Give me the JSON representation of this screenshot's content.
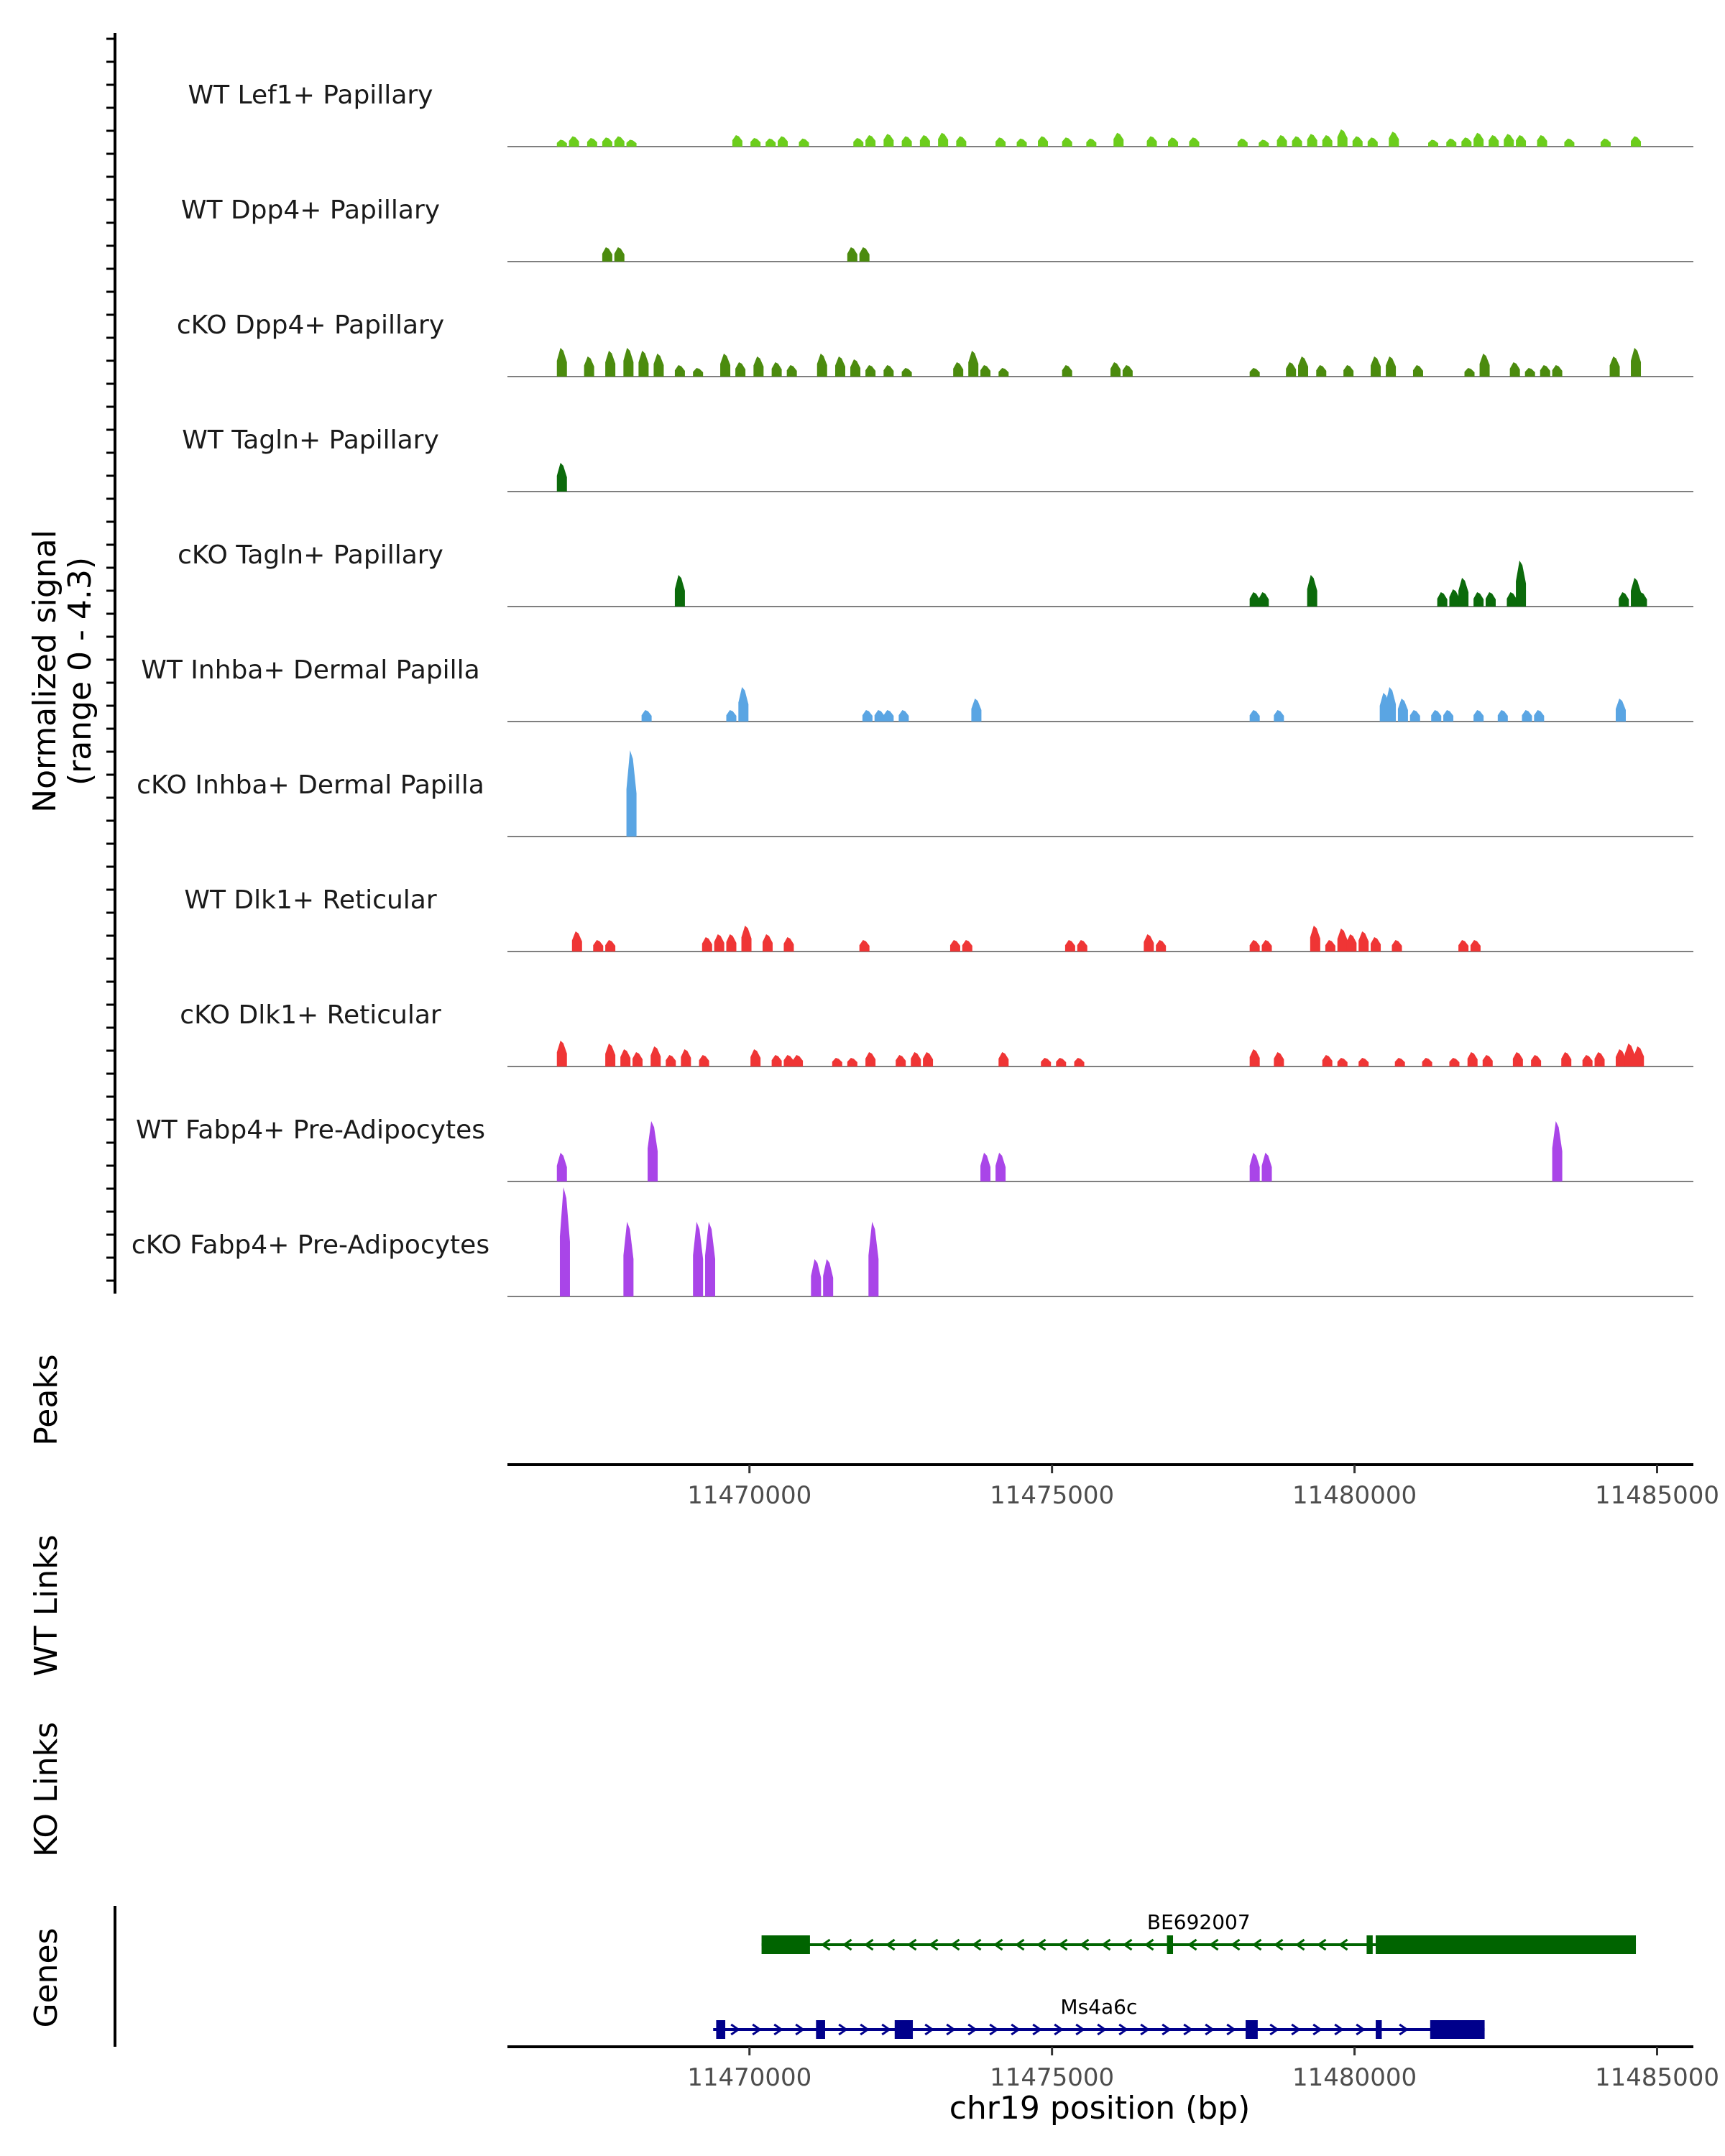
{
  "chart_data": {
    "type": "genome-coverage",
    "region": {
      "chromosome": "chr19",
      "start": 11466000,
      "end": 11485600
    },
    "signal_axis_label": [
      "Normalized signal",
      "(range 0 - 4.3)"
    ],
    "signal_range": [
      0,
      4.3
    ],
    "tracks": [
      {
        "name": "WT Lef1+ Papillary",
        "color": "#6ccd1c",
        "peaks": [
          [
            11466900,
            0.12
          ],
          [
            11467100,
            0.18
          ],
          [
            11467400,
            0.15
          ],
          [
            11467650,
            0.16
          ],
          [
            11467850,
            0.18
          ],
          [
            11468050,
            0.12
          ],
          [
            11469800,
            0.2
          ],
          [
            11470100,
            0.15
          ],
          [
            11470350,
            0.14
          ],
          [
            11470550,
            0.18
          ],
          [
            11470900,
            0.14
          ],
          [
            11471800,
            0.15
          ],
          [
            11472000,
            0.2
          ],
          [
            11472300,
            0.22
          ],
          [
            11472600,
            0.18
          ],
          [
            11472900,
            0.2
          ],
          [
            11473200,
            0.24
          ],
          [
            11473500,
            0.18
          ],
          [
            11474150,
            0.16
          ],
          [
            11474500,
            0.14
          ],
          [
            11474850,
            0.18
          ],
          [
            11475250,
            0.16
          ],
          [
            11475650,
            0.14
          ],
          [
            11476100,
            0.24
          ],
          [
            11476650,
            0.18
          ],
          [
            11477000,
            0.16
          ],
          [
            11477350,
            0.16
          ],
          [
            11478150,
            0.14
          ],
          [
            11478500,
            0.12
          ],
          [
            11478800,
            0.2
          ],
          [
            11479050,
            0.18
          ],
          [
            11479300,
            0.22
          ],
          [
            11479550,
            0.2
          ],
          [
            11479800,
            0.3
          ],
          [
            11480050,
            0.18
          ],
          [
            11480300,
            0.16
          ],
          [
            11480650,
            0.26
          ],
          [
            11481300,
            0.12
          ],
          [
            11481600,
            0.14
          ],
          [
            11481850,
            0.16
          ],
          [
            11482050,
            0.24
          ],
          [
            11482300,
            0.2
          ],
          [
            11482550,
            0.22
          ],
          [
            11482750,
            0.2
          ],
          [
            11483100,
            0.2
          ],
          [
            11483550,
            0.14
          ],
          [
            11484150,
            0.14
          ],
          [
            11484650,
            0.18
          ]
        ]
      },
      {
        "name": "WT Dpp4+ Papillary",
        "color": "#4b8b0e",
        "peaks": [
          [
            11467650,
            0.25
          ],
          [
            11467850,
            0.25
          ],
          [
            11471700,
            0.25
          ],
          [
            11471900,
            0.25
          ]
        ]
      },
      {
        "name": "cKO Dpp4+ Papillary",
        "color": "#4b8b0e",
        "peaks": [
          [
            11466900,
            0.5
          ],
          [
            11467350,
            0.35
          ],
          [
            11467700,
            0.45
          ],
          [
            11468000,
            0.5
          ],
          [
            11468250,
            0.45
          ],
          [
            11468500,
            0.4
          ],
          [
            11468850,
            0.2
          ],
          [
            11469150,
            0.15
          ],
          [
            11469600,
            0.4
          ],
          [
            11469850,
            0.25
          ],
          [
            11470150,
            0.35
          ],
          [
            11470450,
            0.25
          ],
          [
            11470700,
            0.2
          ],
          [
            11471200,
            0.4
          ],
          [
            11471500,
            0.35
          ],
          [
            11471750,
            0.3
          ],
          [
            11472000,
            0.2
          ],
          [
            11472300,
            0.2
          ],
          [
            11472600,
            0.15
          ],
          [
            11473450,
            0.25
          ],
          [
            11473700,
            0.45
          ],
          [
            11473900,
            0.2
          ],
          [
            11474200,
            0.15
          ],
          [
            11475250,
            0.2
          ],
          [
            11476050,
            0.25
          ],
          [
            11476250,
            0.2
          ],
          [
            11478350,
            0.15
          ],
          [
            11478950,
            0.25
          ],
          [
            11479150,
            0.35
          ],
          [
            11479450,
            0.2
          ],
          [
            11479900,
            0.2
          ],
          [
            11480350,
            0.35
          ],
          [
            11480600,
            0.35
          ],
          [
            11481050,
            0.2
          ],
          [
            11481900,
            0.15
          ],
          [
            11482150,
            0.4
          ],
          [
            11482650,
            0.25
          ],
          [
            11482900,
            0.15
          ],
          [
            11483150,
            0.2
          ],
          [
            11483350,
            0.2
          ],
          [
            11484300,
            0.35
          ],
          [
            11484650,
            0.5
          ]
        ]
      },
      {
        "name": "WT Tagln+ Papillary",
        "color": "#0b6a0b",
        "peaks": [
          [
            11466900,
            0.5
          ]
        ]
      },
      {
        "name": "cKO Tagln+ Papillary",
        "color": "#0b6a0b",
        "peaks": [
          [
            11468850,
            0.55
          ],
          [
            11478350,
            0.25
          ],
          [
            11478500,
            0.25
          ],
          [
            11479300,
            0.55
          ],
          [
            11481450,
            0.25
          ],
          [
            11481650,
            0.3
          ],
          [
            11481800,
            0.5
          ],
          [
            11482050,
            0.25
          ],
          [
            11482250,
            0.25
          ],
          [
            11482600,
            0.25
          ],
          [
            11482750,
            0.8
          ],
          [
            11484450,
            0.25
          ],
          [
            11484650,
            0.5
          ],
          [
            11484750,
            0.25
          ]
        ]
      },
      {
        "name": "WT Inhba+ Dermal Papilla",
        "color": "#5aa5e3",
        "peaks": [
          [
            11468300,
            0.2
          ],
          [
            11469700,
            0.2
          ],
          [
            11469900,
            0.6
          ],
          [
            11471950,
            0.2
          ],
          [
            11472150,
            0.2
          ],
          [
            11472300,
            0.2
          ],
          [
            11472550,
            0.2
          ],
          [
            11473750,
            0.4
          ],
          [
            11478350,
            0.2
          ],
          [
            11478750,
            0.2
          ],
          [
            11480500,
            0.5
          ],
          [
            11480600,
            0.6
          ],
          [
            11480800,
            0.4
          ],
          [
            11481000,
            0.2
          ],
          [
            11481350,
            0.2
          ],
          [
            11481550,
            0.2
          ],
          [
            11482050,
            0.2
          ],
          [
            11482450,
            0.2
          ],
          [
            11482850,
            0.2
          ],
          [
            11483050,
            0.2
          ],
          [
            11484400,
            0.4
          ]
        ]
      },
      {
        "name": "cKO Inhba+ Dermal Papilla",
        "color": "#5aa5e3",
        "peaks": [
          [
            11468050,
            1.5
          ]
        ]
      },
      {
        "name": "WT Dlk1+ Reticular",
        "color": "#ef3535",
        "peaks": [
          [
            11467150,
            0.35
          ],
          [
            11467500,
            0.2
          ],
          [
            11467700,
            0.2
          ],
          [
            11469300,
            0.25
          ],
          [
            11469500,
            0.3
          ],
          [
            11469700,
            0.3
          ],
          [
            11469950,
            0.45
          ],
          [
            11470300,
            0.3
          ],
          [
            11470650,
            0.25
          ],
          [
            11471900,
            0.2
          ],
          [
            11473400,
            0.2
          ],
          [
            11473600,
            0.2
          ],
          [
            11475300,
            0.2
          ],
          [
            11475500,
            0.2
          ],
          [
            11476600,
            0.3
          ],
          [
            11476800,
            0.2
          ],
          [
            11478350,
            0.2
          ],
          [
            11478550,
            0.2
          ],
          [
            11479350,
            0.45
          ],
          [
            11479600,
            0.2
          ],
          [
            11479800,
            0.4
          ],
          [
            11479950,
            0.3
          ],
          [
            11480150,
            0.35
          ],
          [
            11480350,
            0.25
          ],
          [
            11480700,
            0.2
          ],
          [
            11481800,
            0.2
          ],
          [
            11482000,
            0.2
          ]
        ]
      },
      {
        "name": "cKO Dlk1+ Reticular",
        "color": "#ef3535",
        "peaks": [
          [
            11466900,
            0.45
          ],
          [
            11467700,
            0.4
          ],
          [
            11467950,
            0.3
          ],
          [
            11468150,
            0.25
          ],
          [
            11468450,
            0.35
          ],
          [
            11468700,
            0.2
          ],
          [
            11468950,
            0.3
          ],
          [
            11469250,
            0.2
          ],
          [
            11470100,
            0.3
          ],
          [
            11470450,
            0.2
          ],
          [
            11470650,
            0.2
          ],
          [
            11470800,
            0.2
          ],
          [
            11471450,
            0.15
          ],
          [
            11471700,
            0.15
          ],
          [
            11472000,
            0.25
          ],
          [
            11472500,
            0.2
          ],
          [
            11472750,
            0.25
          ],
          [
            11472950,
            0.25
          ],
          [
            11474200,
            0.25
          ],
          [
            11474900,
            0.15
          ],
          [
            11475150,
            0.15
          ],
          [
            11475450,
            0.15
          ],
          [
            11478350,
            0.3
          ],
          [
            11478750,
            0.25
          ],
          [
            11479550,
            0.2
          ],
          [
            11479800,
            0.15
          ],
          [
            11480150,
            0.15
          ],
          [
            11480750,
            0.15
          ],
          [
            11481200,
            0.15
          ],
          [
            11481650,
            0.15
          ],
          [
            11481950,
            0.25
          ],
          [
            11482200,
            0.2
          ],
          [
            11482700,
            0.25
          ],
          [
            11483000,
            0.2
          ],
          [
            11483500,
            0.25
          ],
          [
            11483850,
            0.2
          ],
          [
            11484050,
            0.25
          ],
          [
            11484400,
            0.3
          ],
          [
            11484550,
            0.4
          ],
          [
            11484700,
            0.35
          ]
        ]
      },
      {
        "name": "WT Fabp4+ Pre-Adipocytes",
        "color": "#a945e8",
        "peaks": [
          [
            11466900,
            0.5
          ],
          [
            11468400,
            1.05
          ],
          [
            11473900,
            0.5
          ],
          [
            11474150,
            0.5
          ],
          [
            11478350,
            0.5
          ],
          [
            11478550,
            0.5
          ],
          [
            11483350,
            1.05
          ]
        ]
      },
      {
        "name": "cKO Fabp4+ Pre-Adipocytes",
        "color": "#a945e8",
        "peaks": [
          [
            11466950,
            1.9
          ],
          [
            11468000,
            1.3
          ],
          [
            11469150,
            1.3
          ],
          [
            11469350,
            1.3
          ],
          [
            11471100,
            0.65
          ],
          [
            11471300,
            0.65
          ],
          [
            11472050,
            1.3
          ]
        ]
      }
    ],
    "track_label_titles": [
      "Peaks",
      "WT Links",
      "KO Links",
      "Genes"
    ],
    "x_axis": {
      "ticks": [
        11470000,
        11475000,
        11480000,
        11485000
      ],
      "tick_labels": [
        "11470000",
        "11475000",
        "11480000",
        "11485000"
      ],
      "label": "chr19 position (bp)"
    },
    "genes": [
      {
        "name": "BE692007",
        "strand": "-",
        "color": "#006400",
        "start": 11470200,
        "end": 11484650,
        "exons": [
          [
            11470200,
            11471000
          ],
          [
            11476900,
            11477000
          ],
          [
            11480200,
            11480300
          ],
          [
            11480350,
            11484650
          ]
        ]
      },
      {
        "name": "Ms4a6c",
        "strand": "+",
        "color": "#00008b",
        "start": 11469400,
        "end": 11482150,
        "exons": [
          [
            11469450,
            11469600
          ],
          [
            11471100,
            11471250
          ],
          [
            11472400,
            11472700
          ],
          [
            11478200,
            11478400
          ],
          [
            11480350,
            11480450
          ],
          [
            11481250,
            11482150
          ]
        ]
      }
    ]
  }
}
